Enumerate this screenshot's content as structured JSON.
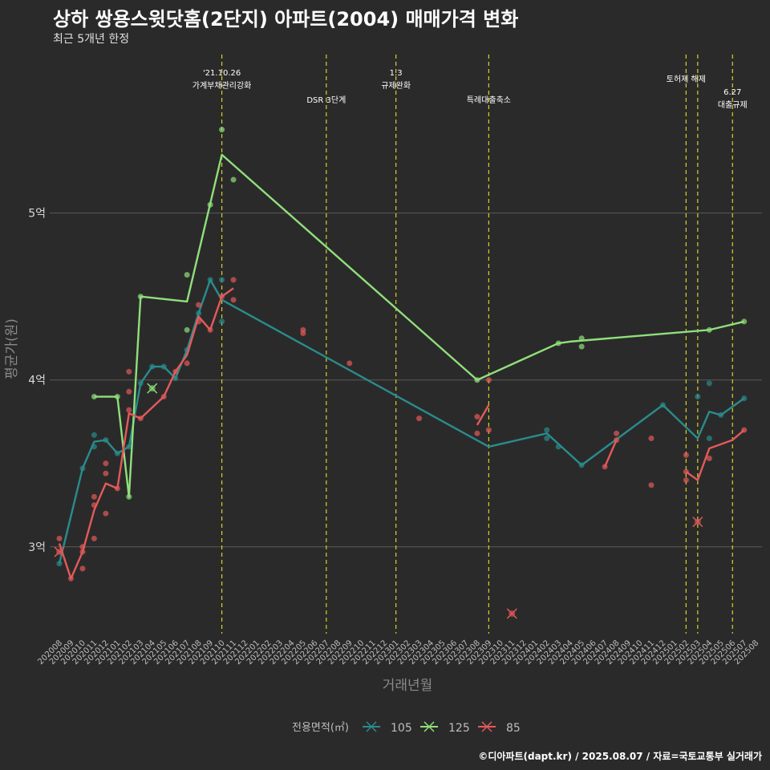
{
  "header": {
    "title": "상하 쌍용스윗닷홈(2단지) 아파트(2004) 매매가격 변화",
    "subtitle": "최근 5개년 한정"
  },
  "caption": "©디아파트(dapt.kr) / 2025.08.07 / 자료=국토교통부 실거래가",
  "colors": {
    "s105": "#2a8c8c",
    "s125": "#8fe07a",
    "s85": "#e45a5a",
    "background": "#2b2a2b",
    "grid": "#5a5a5a",
    "vline": "#d4d423"
  },
  "chart_data": {
    "type": "line",
    "xlabel": "거래년월",
    "ylabel": "평균가(원)",
    "ylim": [
      2.48,
      5.95
    ],
    "yticks": [
      3,
      4,
      5
    ],
    "ytick_labels": [
      "3억",
      "4억",
      "5억"
    ],
    "x_categories": [
      "202008",
      "202009",
      "202010",
      "202011",
      "202012",
      "202101",
      "202102",
      "202103",
      "202104",
      "202105",
      "202106",
      "202107",
      "202108",
      "202109",
      "202110",
      "202111",
      "202112",
      "202201",
      "202202",
      "202203",
      "202204",
      "202205",
      "202206",
      "202207",
      "202208",
      "202209",
      "202210",
      "202211",
      "202212",
      "202301",
      "202302",
      "202303",
      "202304",
      "202305",
      "202306",
      "202307",
      "202308",
      "202309",
      "202310",
      "202311",
      "202312",
      "202401",
      "202402",
      "202403",
      "202404",
      "202405",
      "202406",
      "202407",
      "202408",
      "202409",
      "202410",
      "202411",
      "202412",
      "202501",
      "202502",
      "202503",
      "202504",
      "202505",
      "202506",
      "202507",
      "202508"
    ],
    "legend": {
      "title": "전용면적(㎡)",
      "items": [
        "105",
        "125",
        "85"
      ]
    },
    "annotations": [
      {
        "month": "202110",
        "lines": [
          "'21.10.26",
          "가계부채관리강화"
        ],
        "row": 0
      },
      {
        "month": "202207",
        "lines": [
          "DSR 3단계"
        ],
        "row": 2
      },
      {
        "month": "202301",
        "lines": [
          "1.3",
          "규제완화"
        ],
        "row": 0
      },
      {
        "month": "202309",
        "lines": [
          "특례대출축소"
        ],
        "row": 2
      },
      {
        "month": "202502",
        "lines": [
          "토허제 해제"
        ],
        "row": 1
      },
      {
        "month": "202503",
        "lines": [],
        "row": 0
      },
      {
        "month": "202506",
        "lines": [
          "6.27",
          "대출규제"
        ],
        "row": 3
      }
    ],
    "series": [
      {
        "name": "105",
        "color": "#2a8c8c",
        "line": [
          [
            "202008",
            2.9
          ],
          [
            "202010",
            3.47
          ],
          [
            "202011",
            3.63
          ],
          [
            "202012",
            3.64
          ],
          [
            "202101",
            3.56
          ],
          [
            "202102",
            3.6
          ],
          [
            "202103",
            3.98
          ],
          [
            "202104",
            4.08
          ],
          [
            "202105",
            4.08
          ],
          [
            "202106",
            4.01
          ],
          [
            "202107",
            4.18
          ],
          [
            "202108",
            4.4
          ],
          [
            "202109",
            4.6
          ],
          [
            "202110",
            4.48
          ],
          [
            "202309",
            3.6
          ],
          [
            "202402",
            3.68
          ],
          [
            "202405",
            3.49
          ],
          [
            "202412",
            3.85
          ],
          [
            "202503",
            3.65
          ],
          [
            "202504",
            3.81
          ],
          [
            "202505",
            3.79
          ],
          [
            "202507",
            3.89
          ]
        ],
        "points": [
          [
            "202008",
            2.9
          ],
          [
            "202010",
            3.47
          ],
          [
            "202011",
            3.67
          ],
          [
            "202011",
            3.6
          ],
          [
            "202012",
            3.64
          ],
          [
            "202101",
            3.56
          ],
          [
            "202102",
            3.6
          ],
          [
            "202103",
            3.98
          ],
          [
            "202104",
            4.08
          ],
          [
            "202105",
            4.08
          ],
          [
            "202106",
            4.01
          ],
          [
            "202107",
            4.18
          ],
          [
            "202108",
            4.4
          ],
          [
            "202109",
            4.6
          ],
          [
            "202110",
            4.6
          ],
          [
            "202110",
            4.35
          ],
          [
            "202402",
            3.7
          ],
          [
            "202402",
            3.65
          ],
          [
            "202403",
            3.6
          ],
          [
            "202405",
            3.49
          ],
          [
            "202412",
            3.85
          ],
          [
            "202503",
            3.9
          ],
          [
            "202504",
            3.98
          ],
          [
            "202504",
            3.65
          ],
          [
            "202505",
            3.79
          ],
          [
            "202507",
            3.89
          ]
        ],
        "crosses": []
      },
      {
        "name": "125",
        "color": "#8fe07a",
        "line": [
          [
            "202011",
            3.9
          ],
          [
            "202101",
            3.9
          ],
          [
            "202102",
            3.3
          ],
          [
            "202103",
            4.5
          ],
          [
            "202107",
            4.47
          ],
          [
            "202110",
            5.35
          ],
          [
            "202308",
            4.0
          ],
          [
            "202403",
            4.22
          ],
          [
            "202404",
            4.23
          ],
          [
            "202504",
            4.3
          ],
          [
            "202507",
            4.35
          ]
        ],
        "points": [
          [
            "202011",
            3.9
          ],
          [
            "202101",
            3.9
          ],
          [
            "202102",
            3.3
          ],
          [
            "202103",
            4.5
          ],
          [
            "202107",
            4.63
          ],
          [
            "202107",
            4.3
          ],
          [
            "202109",
            5.05
          ],
          [
            "202110",
            5.5
          ],
          [
            "202111",
            5.2
          ],
          [
            "202308",
            4.0
          ],
          [
            "202403",
            4.22
          ],
          [
            "202405",
            4.25
          ],
          [
            "202405",
            4.2
          ],
          [
            "202504",
            4.3
          ],
          [
            "202507",
            4.35
          ]
        ],
        "crosses": [
          [
            "202104",
            3.95
          ]
        ]
      },
      {
        "name": "85",
        "color": "#e45a5a",
        "line": [
          [
            "202008",
            3.02
          ],
          [
            "202009",
            2.81
          ],
          [
            "202010",
            2.97
          ],
          [
            "202011",
            3.22
          ],
          [
            "202012",
            3.38
          ],
          [
            "202101",
            3.35
          ],
          [
            "202102",
            3.8
          ],
          [
            "202103",
            3.77
          ],
          [
            "202105",
            3.9
          ],
          [
            "202106",
            4.05
          ],
          [
            "202107",
            4.15
          ],
          [
            "202108",
            4.38
          ],
          [
            "202109",
            4.3
          ],
          [
            "202110",
            4.5
          ],
          [
            "202111",
            4.55
          ]
        ],
        "line2": [
          [
            "202308",
            3.73
          ],
          [
            "202309",
            3.85
          ]
        ],
        "line3": [
          [
            "202407",
            3.48
          ],
          [
            "202408",
            3.64
          ]
        ],
        "line4": [
          [
            "202502",
            3.45
          ],
          [
            "202503",
            3.4
          ],
          [
            "202504",
            3.59
          ],
          [
            "202506",
            3.64
          ],
          [
            "202507",
            3.7
          ]
        ],
        "points": [
          [
            "202008",
            3.05
          ],
          [
            "202009",
            2.81
          ],
          [
            "202010",
            3.0
          ],
          [
            "202010",
            2.87
          ],
          [
            "202010",
            2.97
          ],
          [
            "202011",
            3.3
          ],
          [
            "202011",
            3.25
          ],
          [
            "202011",
            3.05
          ],
          [
            "202012",
            3.5
          ],
          [
            "202012",
            3.44
          ],
          [
            "202012",
            3.2
          ],
          [
            "202101",
            3.35
          ],
          [
            "202102",
            4.05
          ],
          [
            "202102",
            3.93
          ],
          [
            "202102",
            3.82
          ],
          [
            "202103",
            3.77
          ],
          [
            "202105",
            3.9
          ],
          [
            "202106",
            4.05
          ],
          [
            "202107",
            4.1
          ],
          [
            "202108",
            4.45
          ],
          [
            "202108",
            4.35
          ],
          [
            "202109",
            4.3
          ],
          [
            "202110",
            4.5
          ],
          [
            "202111",
            4.6
          ],
          [
            "202111",
            4.48
          ],
          [
            "202205",
            4.3
          ],
          [
            "202205",
            4.28
          ],
          [
            "202209",
            4.1
          ],
          [
            "202303",
            3.77
          ],
          [
            "202308",
            3.78
          ],
          [
            "202308",
            3.68
          ],
          [
            "202309",
            4.0
          ],
          [
            "202309",
            3.7
          ],
          [
            "202407",
            3.48
          ],
          [
            "202408",
            3.68
          ],
          [
            "202408",
            3.64
          ],
          [
            "202411",
            3.65
          ],
          [
            "202411",
            3.37
          ],
          [
            "202502",
            3.55
          ],
          [
            "202502",
            3.4
          ],
          [
            "202502",
            3.45
          ],
          [
            "202504",
            3.53
          ],
          [
            "202507",
            3.7
          ]
        ],
        "crosses": [
          [
            "202008",
            2.97
          ],
          [
            "202311",
            2.6
          ],
          [
            "202503",
            3.15
          ]
        ]
      }
    ]
  }
}
